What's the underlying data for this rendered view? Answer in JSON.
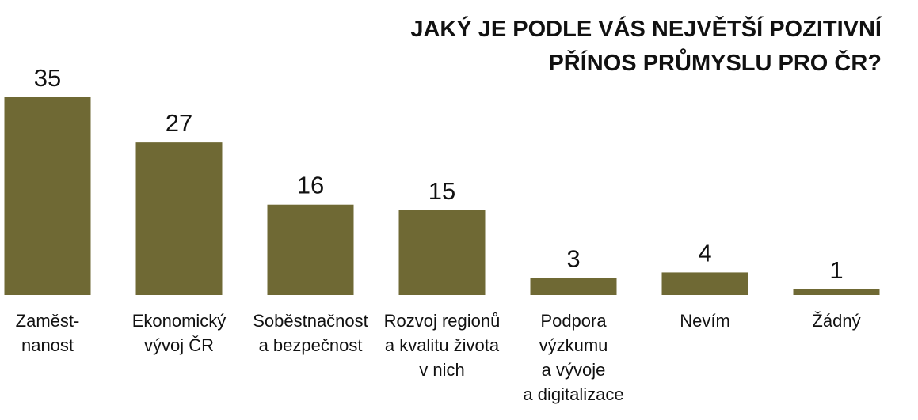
{
  "chart_data": {
    "type": "bar",
    "title": [
      "JAKÝ JE PODLE VÁS NEJVĚTŠÍ POZITIVNÍ",
      "PŘÍNOS PRŮMYSLU PRO ČR?"
    ],
    "categories": [
      [
        "Zaměst-",
        "nanost"
      ],
      [
        "Ekonomický",
        "vývoj ČR"
      ],
      [
        "Soběstnačnost",
        "a bezpečnost"
      ],
      [
        "Rozvoj regionů",
        "a kvalitu života",
        "v nich"
      ],
      [
        "Podpora",
        "výzkumu",
        "a vývoje",
        "a digitalizace"
      ],
      [
        "Nevím"
      ],
      [
        "Žádný"
      ]
    ],
    "values": [
      35,
      27,
      16,
      15,
      3,
      4,
      1
    ],
    "color": "#6f6934"
  }
}
